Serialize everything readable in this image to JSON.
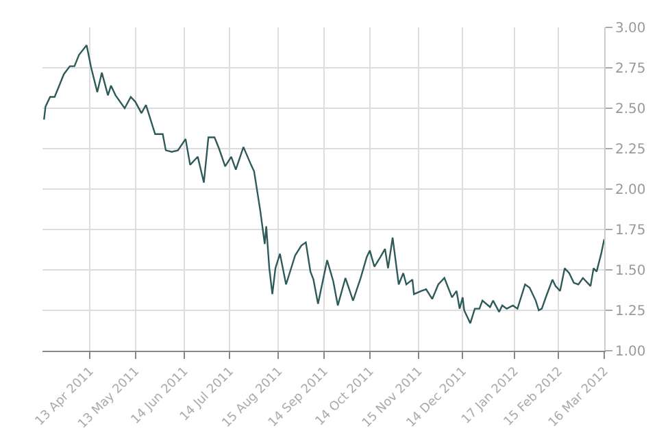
{
  "chart_data": {
    "type": "line",
    "x": [
      "2011-03-14",
      "2011-03-15",
      "2011-03-18",
      "2011-03-21",
      "2011-03-27",
      "2011-03-31",
      "2011-04-03",
      "2011-04-06",
      "2011-04-11",
      "2011-04-14",
      "2011-04-18",
      "2011-04-21",
      "2011-04-25",
      "2011-04-27",
      "2011-04-30",
      "2011-05-06",
      "2011-05-10",
      "2011-05-13",
      "2011-05-17",
      "2011-05-20",
      "2011-05-26",
      "2011-05-31",
      "2011-06-02",
      "2011-06-06",
      "2011-06-10",
      "2011-06-15",
      "2011-06-18",
      "2011-06-23",
      "2011-06-27",
      "2011-06-30",
      "2011-07-04",
      "2011-07-07",
      "2011-07-11",
      "2011-07-15",
      "2011-07-18",
      "2011-07-23",
      "2011-07-28",
      "2011-07-30",
      "2011-08-03",
      "2011-08-06",
      "2011-08-07",
      "2011-08-09",
      "2011-08-11",
      "2011-08-13",
      "2011-08-16",
      "2011-08-20",
      "2011-08-26",
      "2011-08-30",
      "2011-09-02",
      "2011-09-05",
      "2011-09-07",
      "2011-09-10",
      "2011-09-16",
      "2011-09-20",
      "2011-09-23",
      "2011-09-28",
      "2011-10-03",
      "2011-10-08",
      "2011-10-12",
      "2011-10-14",
      "2011-10-17",
      "2011-10-21",
      "2011-10-24",
      "2011-10-26",
      "2011-10-29",
      "2011-11-02",
      "2011-11-05",
      "2011-11-07",
      "2011-11-11",
      "2011-11-12",
      "2011-11-17",
      "2011-11-20",
      "2011-11-24",
      "2011-11-28",
      "2011-12-02",
      "2011-12-07",
      "2011-12-10",
      "2011-12-12",
      "2011-12-14",
      "2011-12-15",
      "2011-12-19",
      "2011-12-22",
      "2011-12-25",
      "2011-12-27",
      "2012-01-01",
      "2012-01-03",
      "2012-01-07",
      "2012-01-09",
      "2012-01-12",
      "2012-01-16",
      "2012-01-19",
      "2012-01-24",
      "2012-01-27",
      "2012-01-31",
      "2012-02-02",
      "2012-02-04",
      "2012-02-07",
      "2012-02-11",
      "2012-02-13",
      "2012-02-16",
      "2012-02-19",
      "2012-02-22",
      "2012-02-25",
      "2012-02-28",
      "2012-03-02",
      "2012-03-05",
      "2012-03-07",
      "2012-03-09",
      "2012-03-11",
      "2012-03-14",
      "2012-03-16"
    ],
    "series": [
      {
        "color": "#2f5a5a",
        "values": [
          2.43,
          2.51,
          2.57,
          2.57,
          2.71,
          2.76,
          2.76,
          2.83,
          2.89,
          2.75,
          2.6,
          2.72,
          2.58,
          2.64,
          2.58,
          2.5,
          2.57,
          2.54,
          2.47,
          2.52,
          2.34,
          2.34,
          2.24,
          2.23,
          2.24,
          2.31,
          2.15,
          2.2,
          2.04,
          2.32,
          2.32,
          2.25,
          2.14,
          2.2,
          2.12,
          2.26,
          2.15,
          2.11,
          1.87,
          1.66,
          1.77,
          1.51,
          1.35,
          1.51,
          1.6,
          1.41,
          1.59,
          1.65,
          1.67,
          1.49,
          1.44,
          1.29,
          1.56,
          1.43,
          1.28,
          1.45,
          1.31,
          1.45,
          1.58,
          1.62,
          1.52,
          1.58,
          1.63,
          1.51,
          1.7,
          1.41,
          1.48,
          1.41,
          1.44,
          1.35,
          1.37,
          1.38,
          1.32,
          1.41,
          1.45,
          1.33,
          1.37,
          1.26,
          1.33,
          1.25,
          1.17,
          1.26,
          1.26,
          1.31,
          1.27,
          1.31,
          1.24,
          1.28,
          1.26,
          1.28,
          1.26,
          1.41,
          1.39,
          1.31,
          1.25,
          1.26,
          1.34,
          1.44,
          1.4,
          1.37,
          1.51,
          1.48,
          1.42,
          1.41,
          1.45,
          1.42,
          1.4,
          1.51,
          1.49,
          1.6,
          1.69
        ]
      }
    ],
    "xlim": [
      "2011-03-13",
      "2012-03-16"
    ],
    "xticks": [
      {
        "value": "2011-04-13",
        "label": "13 Apr 2011"
      },
      {
        "value": "2011-05-13",
        "label": "13 May 2011"
      },
      {
        "value": "2011-06-14",
        "label": "14 Jun 2011"
      },
      {
        "value": "2011-07-14",
        "label": "14 Jul 2011"
      },
      {
        "value": "2011-08-15",
        "label": "15 Aug 2011"
      },
      {
        "value": "2011-09-14",
        "label": "14 Sep 2011"
      },
      {
        "value": "2011-10-14",
        "label": "14 Oct 2011"
      },
      {
        "value": "2011-11-15",
        "label": "15 Nov 2011"
      },
      {
        "value": "2011-12-14",
        "label": "14 Dec 2011"
      },
      {
        "value": "2012-01-17",
        "label": "17 Jan 2012"
      },
      {
        "value": "2012-02-15",
        "label": "15 Feb 2012"
      },
      {
        "value": "2012-03-16",
        "label": "16 Mar 2012"
      }
    ],
    "ylim": [
      1.0,
      3.0
    ],
    "yticks": [
      {
        "value": 1.0,
        "label": "1.00"
      },
      {
        "value": 1.25,
        "label": "1.25"
      },
      {
        "value": 1.5,
        "label": "1.50"
      },
      {
        "value": 1.75,
        "label": "1.75"
      },
      {
        "value": 2.0,
        "label": "2.00"
      },
      {
        "value": 2.25,
        "label": "2.25"
      },
      {
        "value": 2.5,
        "label": "2.50"
      },
      {
        "value": 2.75,
        "label": "2.75"
      },
      {
        "value": 3.0,
        "label": "3.00"
      }
    ],
    "grid": true
  }
}
